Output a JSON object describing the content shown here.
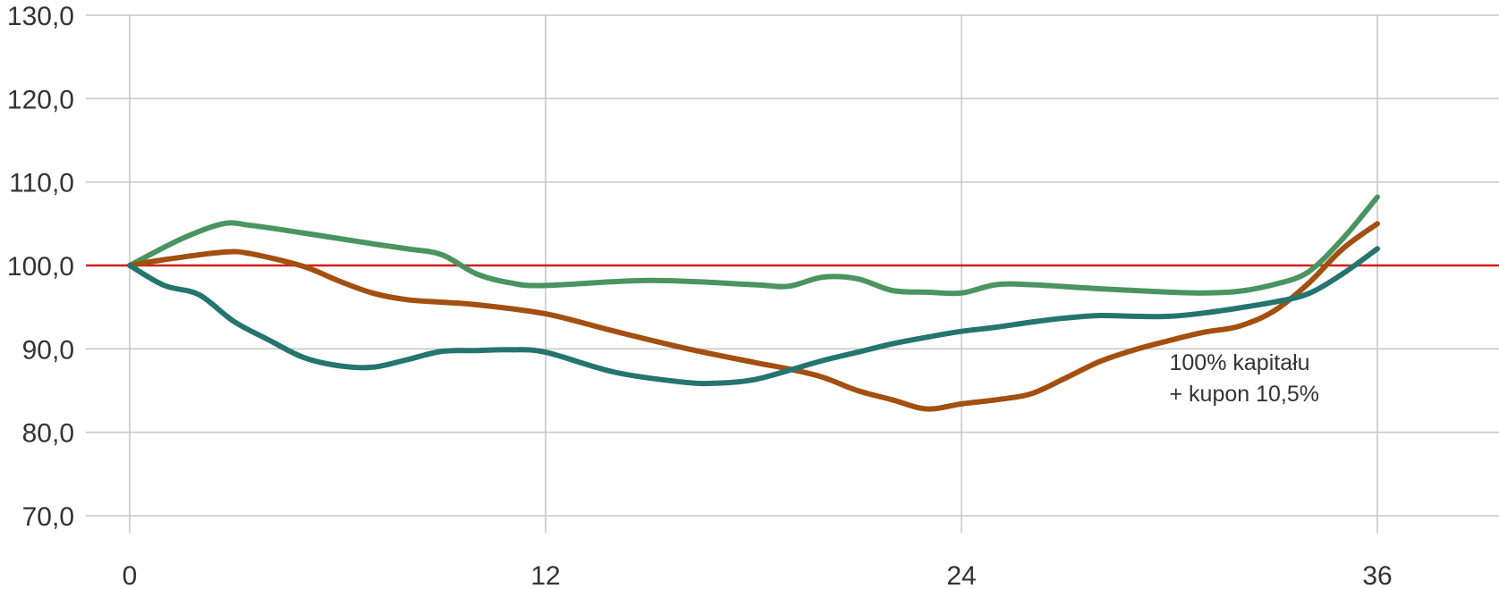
{
  "chart_data": {
    "type": "line",
    "title": "",
    "xlabel": "",
    "ylabel": "",
    "xlim": [
      0,
      39
    ],
    "ylim": [
      70,
      130
    ],
    "x_ticks": [
      0,
      12,
      24,
      36
    ],
    "x_tick_labels": [
      "0",
      "12",
      "24",
      "36"
    ],
    "y_ticks": [
      70,
      80,
      90,
      100,
      110,
      120,
      130
    ],
    "y_tick_labels": [
      "70,0",
      "80,0",
      "90,0",
      "100,0",
      "110,0",
      "120,0",
      "130,0"
    ],
    "grid": true,
    "reference_line": {
      "y": 100,
      "color": "#d21e1e"
    },
    "annotation": {
      "lines": [
        "100% kapitału",
        "+ kupon 10,5%"
      ],
      "x": 30,
      "y": 88
    },
    "series": [
      {
        "color": "#4a9460",
        "x": [
          0,
          1.5,
          2.7,
          3.5,
          5,
          7,
          8,
          9,
          10,
          11,
          12,
          15,
          18,
          19,
          20,
          21,
          22,
          23,
          24,
          25,
          26,
          28,
          30,
          31,
          32,
          33,
          34,
          35,
          36
        ],
        "y": [
          100,
          103.2,
          105,
          104.8,
          103.9,
          102.6,
          102,
          101.3,
          99,
          97.9,
          97.6,
          98.2,
          97.7,
          97.5,
          98.6,
          98.4,
          97,
          96.8,
          96.7,
          97.7,
          97.7,
          97.2,
          96.8,
          96.7,
          96.9,
          97.7,
          99.2,
          103.2,
          108.2
        ]
      },
      {
        "color": "#a34f10",
        "x": [
          0,
          1,
          2.7,
          3.5,
          5,
          6,
          7,
          8,
          9,
          10,
          12,
          14,
          16,
          18,
          19,
          20,
          21,
          22,
          23,
          24,
          25,
          26,
          27,
          28,
          29,
          30,
          31,
          32,
          33,
          34,
          35,
          36
        ],
        "y": [
          100,
          100.7,
          101.6,
          101.4,
          99.9,
          98.2,
          96.7,
          95.9,
          95.6,
          95.3,
          94.2,
          92.1,
          90.1,
          88.4,
          87.6,
          86.6,
          85,
          83.9,
          82.8,
          83.4,
          83.9,
          84.6,
          86.5,
          88.5,
          89.9,
          91,
          92,
          92.7,
          94.5,
          97.8,
          102,
          105
        ]
      },
      {
        "color": "#24756e",
        "x": [
          0,
          1,
          2,
          3,
          4,
          5,
          6,
          7,
          8,
          9,
          10,
          11,
          12,
          14,
          16,
          17,
          18,
          19,
          20,
          21,
          22,
          23,
          24,
          25,
          26,
          27,
          28,
          29,
          30,
          31,
          32,
          33,
          34,
          35,
          36
        ],
        "y": [
          100,
          97.6,
          96.5,
          93.3,
          91.1,
          89,
          88,
          87.8,
          88.7,
          89.7,
          89.8,
          89.9,
          89.6,
          87.2,
          86,
          85.9,
          86.3,
          87.4,
          88.6,
          89.6,
          90.6,
          91.4,
          92.1,
          92.6,
          93.2,
          93.7,
          94,
          93.9,
          93.9,
          94.3,
          94.9,
          95.6,
          96.6,
          99,
          102
        ]
      }
    ]
  }
}
